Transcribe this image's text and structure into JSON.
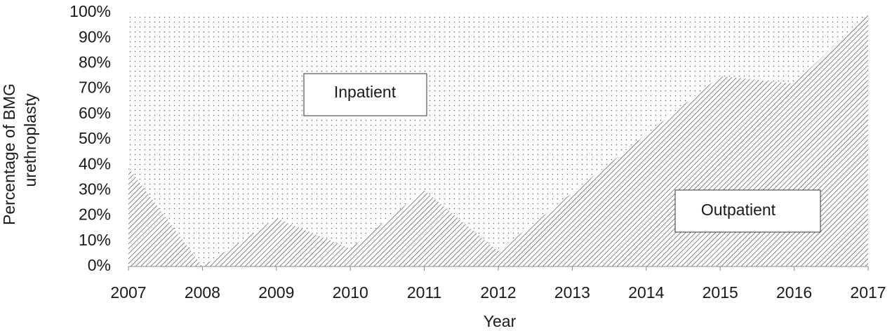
{
  "chart_data": {
    "type": "stacked-area",
    "x_label": "Year",
    "y_label": [
      "Percentage of BMG",
      "urethroplasty"
    ],
    "categories": [
      "2007",
      "2008",
      "2009",
      "2010",
      "2011",
      "2012",
      "2013",
      "2014",
      "2015",
      "2016",
      "2017"
    ],
    "series": [
      {
        "name": "Outpatient",
        "color": "#444444",
        "pattern": "hatch",
        "values": [
          39,
          0,
          19,
          7,
          30,
          6,
          29,
          52,
          75,
          72,
          100
        ]
      },
      {
        "name": "Inpatient",
        "color": "#666666",
        "pattern": "dots",
        "values": [
          61,
          100,
          81,
          93,
          70,
          94,
          71,
          48,
          25,
          28,
          0
        ]
      }
    ],
    "ylim": [
      0,
      100
    ],
    "yticks": [
      {
        "value": 0,
        "label": "0%"
      },
      {
        "value": 10,
        "label": "10%"
      },
      {
        "value": 20,
        "label": "20%"
      },
      {
        "value": 30,
        "label": "30%"
      },
      {
        "value": 40,
        "label": "40%"
      },
      {
        "value": 50,
        "label": "50%"
      },
      {
        "value": 60,
        "label": "60%"
      },
      {
        "value": 70,
        "label": "70%"
      },
      {
        "value": 80,
        "label": "80%"
      },
      {
        "value": 90,
        "label": "90%"
      },
      {
        "value": 100,
        "label": "100%"
      }
    ]
  }
}
